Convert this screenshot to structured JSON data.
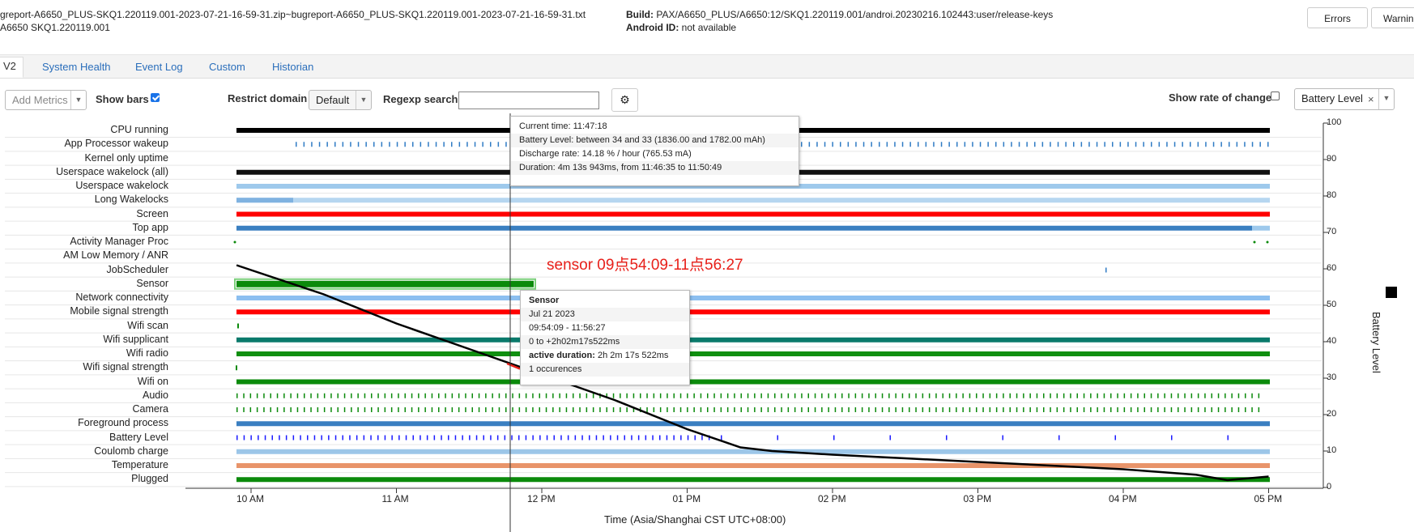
{
  "header": {
    "file_line1": "greport-A6650_PLUS-SKQ1.220119.001-2023-07-21-16-59-31.zip~bugreport-A6650_PLUS-SKQ1.220119.001-2023-07-21-16-59-31.txt",
    "file_line2": "A6650 SKQ1.220119.001",
    "build_label": "Build:",
    "build_value": "PAX/A6650_PLUS/A6650:12/SKQ1.220119.001/androi.20230216.102443:user/release-keys",
    "android_id_label": "Android ID:",
    "android_id_value": "not available",
    "errors_button": "Errors",
    "warnings_button": "Warnin"
  },
  "tabs": [
    "V2",
    "System Health",
    "Event Log",
    "Custom",
    "Historian"
  ],
  "controls": {
    "add_metrics": "Add Metrics",
    "show_bars_label": "Show bars",
    "restrict_domain_label": "Restrict domain",
    "restrict_domain_value": "Default",
    "regexp_label": "Regexp search",
    "regexp_value": "",
    "show_rate_label": "Show rate of change",
    "metric_select": "Battery Level",
    "metric_select_clear": "×"
  },
  "rows": [
    "CPU running",
    "App Processor wakeup",
    "Kernel only uptime",
    "Userspace wakelock (all)",
    "Userspace wakelock",
    "Long Wakelocks",
    "Screen",
    "Top app",
    "Activity Manager Proc",
    "AM Low Memory / ANR",
    "JobScheduler",
    "Sensor",
    "Network connectivity",
    "Mobile signal strength",
    "Wifi scan",
    "Wifi supplicant",
    "Wifi radio",
    "Wifi signal strength",
    "Wifi on",
    "Audio",
    "Camera",
    "Foreground process",
    "Battery Level",
    "Coulomb charge",
    "Temperature",
    "Plugged"
  ],
  "tooltip_main": [
    "Current time: 11:47:18",
    "Battery Level: between 34 and 33 (1836.00 and 1782.00 mAh)",
    "Discharge rate: 14.18 % / hour (765.53 mA)",
    "Duration: 4m 13s 943ms, from 11:46:35 to 11:50:49"
  ],
  "tooltip_sensor": {
    "title": "Sensor",
    "date": "Jul 21 2023",
    "range": "09:54:09 - 11:56:27",
    "offset": "0 to +2h02m17s522ms",
    "active_label": "active duration:",
    "active_value": "2h 2m 17s 522ms",
    "occurrences": "1 occurences"
  },
  "annotation": "sensor 09点54:09-11点56:27",
  "chart_data": {
    "type": "line",
    "title": "",
    "xlabel": "Time (Asia/Shanghai CST UTC+08:00)",
    "ylabel": "Battery Level",
    "x_ticks": [
      "10 AM",
      "11 AM",
      "12 PM",
      "01 PM",
      "02 PM",
      "03 PM",
      "04 PM",
      "05 PM"
    ],
    "y_ticks": [
      0,
      10,
      20,
      30,
      40,
      50,
      60,
      70,
      80,
      90,
      100
    ],
    "ylim": [
      0,
      100
    ],
    "series": [
      {
        "name": "Battery Level",
        "x": [
          "09:54",
          "10:30",
          "11:00",
          "11:30",
          "12:00",
          "12:30",
          "13:00",
          "13:22",
          "13:35",
          "14:00",
          "14:30",
          "15:00",
          "15:30",
          "16:00",
          "16:30",
          "16:43",
          "17:00"
        ],
        "values": [
          61,
          53,
          45,
          38,
          31,
          24,
          16,
          11,
          10,
          9,
          8,
          7,
          6,
          5,
          3.5,
          2,
          3
        ],
        "color": "#000000"
      }
    ],
    "colors": {
      "cpu": "#000000",
      "app_wakeup": "#2f7bc4",
      "userspace_all": "#111111",
      "userspace": "#9ec9ec",
      "long_wakelocks": "#7fb2e0",
      "screen": "#ff0000",
      "top_app": "#3a7fc1",
      "sensor": "#0b8a0b",
      "network": "#8cbff0",
      "mobile_signal": "#ff0000",
      "wifi_supplicant": "#0a7a6b",
      "wifi_radio": "#108f10",
      "wifi_on": "#0b8a0b",
      "foreground": "#3a7fc1",
      "battery_level_marks": "#1a1aff",
      "coulomb": "#9cc6e8",
      "temperature": "#e8946a",
      "plugged": "#0b8a0b",
      "annotation": "#e8201a"
    }
  }
}
